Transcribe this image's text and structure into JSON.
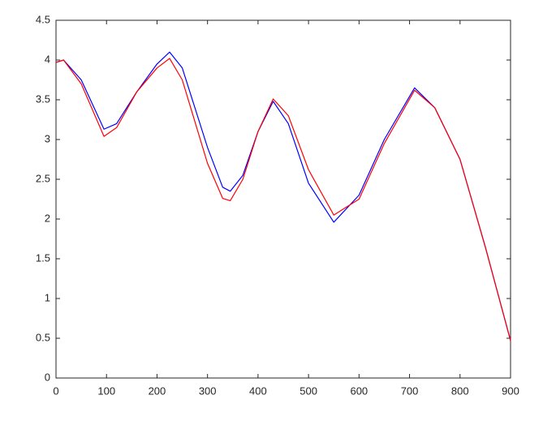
{
  "chart_data": {
    "type": "line",
    "x": [
      0,
      15,
      50,
      95,
      120,
      160,
      200,
      225,
      250,
      300,
      330,
      345,
      370,
      400,
      430,
      460,
      500,
      550,
      600,
      650,
      710,
      750,
      800,
      850,
      900
    ],
    "series": [
      {
        "color": "#0000ff",
        "values": [
          3.97,
          4.0,
          3.75,
          3.13,
          3.2,
          3.6,
          3.95,
          4.1,
          3.9,
          2.9,
          2.4,
          2.35,
          2.55,
          3.1,
          3.48,
          3.2,
          2.45,
          1.96,
          2.3,
          3.0,
          3.65,
          3.4,
          2.75,
          1.65,
          0.47
        ]
      },
      {
        "color": "#ff0000",
        "values": [
          3.97,
          4.0,
          3.7,
          3.04,
          3.15,
          3.6,
          3.9,
          4.02,
          3.75,
          2.7,
          2.26,
          2.23,
          2.5,
          3.1,
          3.51,
          3.3,
          2.62,
          2.05,
          2.25,
          2.95,
          3.62,
          3.4,
          2.75,
          1.65,
          0.47
        ]
      }
    ],
    "xlim": [
      0,
      900
    ],
    "xticks": [
      0,
      100,
      200,
      300,
      400,
      500,
      600,
      700,
      800,
      900
    ],
    "ylim": [
      0,
      4.5
    ],
    "yticks": [
      0,
      0.5,
      1,
      1.5,
      2,
      2.5,
      3,
      3.5,
      4,
      4.5
    ]
  }
}
